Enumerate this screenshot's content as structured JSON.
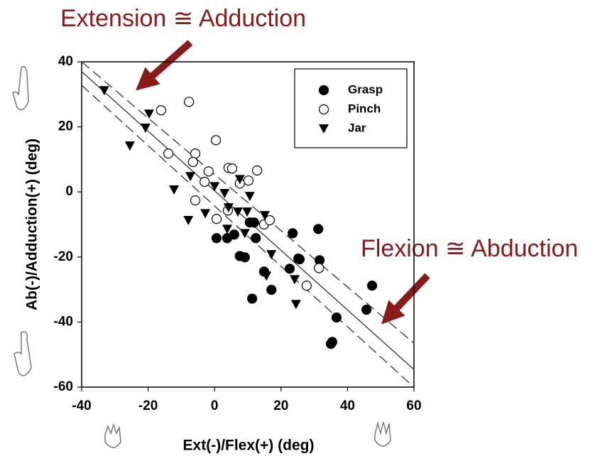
{
  "chart_data": {
    "type": "scatter",
    "xlabel": "Ext(-)/Flex(+) (deg)",
    "ylabel": "Ab(-)/Adduction(+) (deg)",
    "annotations": [
      "Extension ≅ Adduction",
      "Flexion ≅ Abduction"
    ],
    "xlim": [
      -40,
      60
    ],
    "xticks": [
      -40,
      -20,
      0,
      20,
      40,
      60
    ],
    "ylim": [
      -60,
      40
    ],
    "yticks": [
      -60,
      -40,
      -20,
      0,
      20,
      40
    ],
    "series": [
      {
        "name": "Grasp",
        "marker": "filled-circle",
        "color": "#000000",
        "x": [
          0.6,
          3.8,
          5.9,
          7.6,
          9.1,
          10.6,
          11.9,
          12.4,
          14.9,
          11.3,
          17.1,
          23.5,
          25.2,
          22.6,
          25.6,
          31.2,
          31.6,
          36.7,
          35.0,
          35.4,
          45.7,
          47.4
        ],
        "values": [
          -14.2,
          -14.2,
          -13.1,
          -19.7,
          -20.1,
          -9.4,
          -9.4,
          -14.2,
          -24.5,
          -32.8,
          -30.1,
          -12.7,
          -20.5,
          -23.6,
          -20.7,
          -11.4,
          -21.0,
          -38.6,
          -46.7,
          -46.1,
          -36.2,
          -28.8
        ]
      },
      {
        "name": "Pinch",
        "marker": "open-circle",
        "color": "#000000",
        "x": [
          -16.1,
          -7.7,
          -13.9,
          -5.8,
          -6.5,
          -1.8,
          0.4,
          4.2,
          5.3,
          12.8,
          10.2,
          7.6,
          -3.0,
          -5.8,
          0.6,
          4.0,
          14.9,
          16.6,
          27.7,
          31.4
        ],
        "values": [
          25.1,
          27.7,
          11.8,
          11.8,
          9.2,
          6.3,
          15.9,
          7.4,
          7.2,
          6.6,
          3.5,
          2.6,
          3.1,
          -2.6,
          -8.3,
          -5.7,
          -10.0,
          -8.7,
          -28.8,
          -23.4
        ]
      },
      {
        "name": "Jar",
        "marker": "triangle-down",
        "color": "#000000",
        "x": [
          -33.2,
          -19.7,
          -20.8,
          -25.5,
          -12.2,
          -7.3,
          -7.9,
          -2.8,
          0.0,
          3.0,
          3.8,
          7.0,
          7.6,
          9.8,
          10.6,
          9.1,
          15.1,
          17.1,
          15.6,
          24.1,
          24.5,
          4.2
        ],
        "values": [
          31.2,
          24.0,
          19.7,
          14.2,
          0.7,
          4.8,
          -8.7,
          -6.6,
          1.7,
          -0.4,
          -11.4,
          -6.1,
          3.9,
          -6.1,
          -1.3,
          -12.7,
          -7.2,
          -19.2,
          -25.8,
          -26.9,
          -34.5,
          -4.8
        ]
      }
    ],
    "fit_lines": [
      {
        "style": "solid",
        "x": [
          -40,
          60
        ],
        "values": [
          37,
          -54.6
        ]
      },
      {
        "style": "dashed",
        "x": [
          -40,
          60
        ],
        "values": [
          40,
          -46.5
        ]
      },
      {
        "style": "dashed",
        "x": [
          -40,
          60
        ],
        "values": [
          32.8,
          -60
        ]
      }
    ],
    "legend": "upper right"
  }
}
